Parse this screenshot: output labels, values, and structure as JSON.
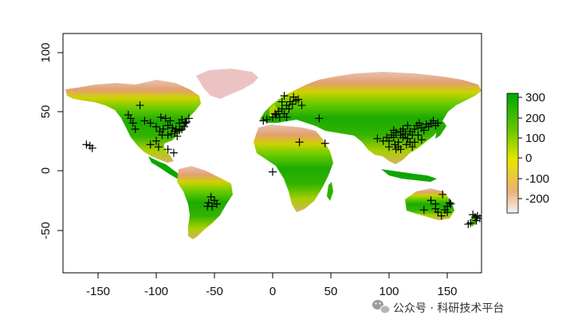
{
  "map": {
    "type": "raster map with point markers",
    "x_ticks": [
      "-150",
      "-100",
      "-50",
      "0",
      "50",
      "100",
      "150"
    ],
    "y_ticks": [
      "100",
      "50",
      "0",
      "-50"
    ],
    "xlim": [
      -180,
      180
    ],
    "ylim": [
      -90,
      120
    ],
    "colors": {
      "high": "#00a600",
      "mid": "#e6e600",
      "low": "#ecb176",
      "lowest": "#f2f2f2",
      "marker": "#000000"
    }
  },
  "legend": {
    "ticks": [
      "300",
      "200",
      "100",
      "0",
      "-100",
      "-200"
    ],
    "min": -270,
    "max": 310
  },
  "watermark": {
    "text": "公众号 · 科研技术平台",
    "icon": "wechat-icon"
  },
  "chart_data": {
    "type": "scatter",
    "title": "",
    "xlabel": "",
    "ylabel": "",
    "xlim": [
      -180,
      180
    ],
    "ylim": [
      -90,
      120
    ],
    "x_ticks": [
      -150,
      -100,
      -50,
      0,
      50,
      100,
      150
    ],
    "y_ticks": [
      100,
      50,
      0,
      -50
    ],
    "points": [
      [
        -124,
        47
      ],
      [
        -122,
        44
      ],
      [
        -120,
        40
      ],
      [
        -118,
        35
      ],
      [
        -114,
        55
      ],
      [
        -110,
        42
      ],
      [
        -105,
        40
      ],
      [
        -100,
        37
      ],
      [
        -97,
        33
      ],
      [
        -95,
        30
      ],
      [
        -92,
        44
      ],
      [
        -90,
        38
      ],
      [
        -88,
        42
      ],
      [
        -86,
        36
      ],
      [
        -84,
        33
      ],
      [
        -82,
        29
      ],
      [
        -80,
        40
      ],
      [
        -78,
        43
      ],
      [
        -76,
        37
      ],
      [
        -74,
        41
      ],
      [
        -72,
        44
      ],
      [
        -90,
        30
      ],
      [
        -87,
        31
      ],
      [
        -83,
        35
      ],
      [
        -80,
        34
      ],
      [
        -78,
        35
      ],
      [
        -75,
        40
      ],
      [
        -96,
        45
      ],
      [
        -94,
        35
      ],
      [
        -100,
        25
      ],
      [
        -98,
        20
      ],
      [
        -90,
        18
      ],
      [
        -85,
        15
      ],
      [
        -105,
        22
      ],
      [
        -157,
        21
      ],
      [
        -155,
        19
      ],
      [
        -160,
        22
      ],
      [
        -55,
        -27
      ],
      [
        -52,
        -30
      ],
      [
        -50,
        -25
      ],
      [
        -48,
        -28
      ],
      [
        -53,
        -22
      ],
      [
        -56,
        -30
      ],
      [
        0,
        -1
      ],
      [
        -5,
        43
      ],
      [
        -8,
        42
      ],
      [
        0,
        45
      ],
      [
        3,
        47
      ],
      [
        5,
        50
      ],
      [
        8,
        52
      ],
      [
        10,
        48
      ],
      [
        12,
        55
      ],
      [
        14,
        52
      ],
      [
        17,
        56
      ],
      [
        20,
        59
      ],
      [
        22,
        60
      ],
      [
        25,
        55
      ],
      [
        15,
        58
      ],
      [
        18,
        62
      ],
      [
        10,
        63
      ],
      [
        8,
        58
      ],
      [
        2,
        48
      ],
      [
        6,
        45
      ],
      [
        12,
        45
      ],
      [
        23,
        24
      ],
      [
        40,
        44
      ],
      [
        45,
        23
      ],
      [
        100,
        25
      ],
      [
        102,
        30
      ],
      [
        104,
        28
      ],
      [
        106,
        32
      ],
      [
        108,
        24
      ],
      [
        110,
        30
      ],
      [
        112,
        28
      ],
      [
        114,
        31
      ],
      [
        116,
        27
      ],
      [
        118,
        33
      ],
      [
        120,
        30
      ],
      [
        122,
        35
      ],
      [
        124,
        38
      ],
      [
        126,
        40
      ],
      [
        128,
        36
      ],
      [
        130,
        34
      ],
      [
        132,
        39
      ],
      [
        134,
        37
      ],
      [
        136,
        40
      ],
      [
        138,
        42
      ],
      [
        140,
        38
      ],
      [
        142,
        40
      ],
      [
        105,
        22
      ],
      [
        108,
        20
      ],
      [
        110,
        18
      ],
      [
        115,
        22
      ],
      [
        118,
        24
      ],
      [
        120,
        20
      ],
      [
        112,
        35
      ],
      [
        116,
        38
      ],
      [
        110,
        33
      ],
      [
        104,
        34
      ],
      [
        95,
        25
      ],
      [
        98,
        28
      ],
      [
        90,
        27
      ],
      [
        100,
        20
      ],
      [
        106,
        18
      ],
      [
        125,
        30
      ],
      [
        128,
        26
      ],
      [
        122,
        24
      ],
      [
        136,
        -25
      ],
      [
        140,
        -32
      ],
      [
        142,
        -35
      ],
      [
        145,
        -38
      ],
      [
        148,
        -33
      ],
      [
        150,
        -30
      ],
      [
        152,
        -27
      ],
      [
        146,
        -20
      ],
      [
        140,
        -28
      ],
      [
        130,
        -33
      ],
      [
        150,
        -35
      ],
      [
        153,
        -28
      ],
      [
        172,
        -37
      ],
      [
        174,
        -39
      ],
      [
        176,
        -38
      ],
      [
        178,
        -40
      ],
      [
        175,
        -42
      ],
      [
        170,
        -44
      ],
      [
        168,
        -45
      ]
    ]
  }
}
